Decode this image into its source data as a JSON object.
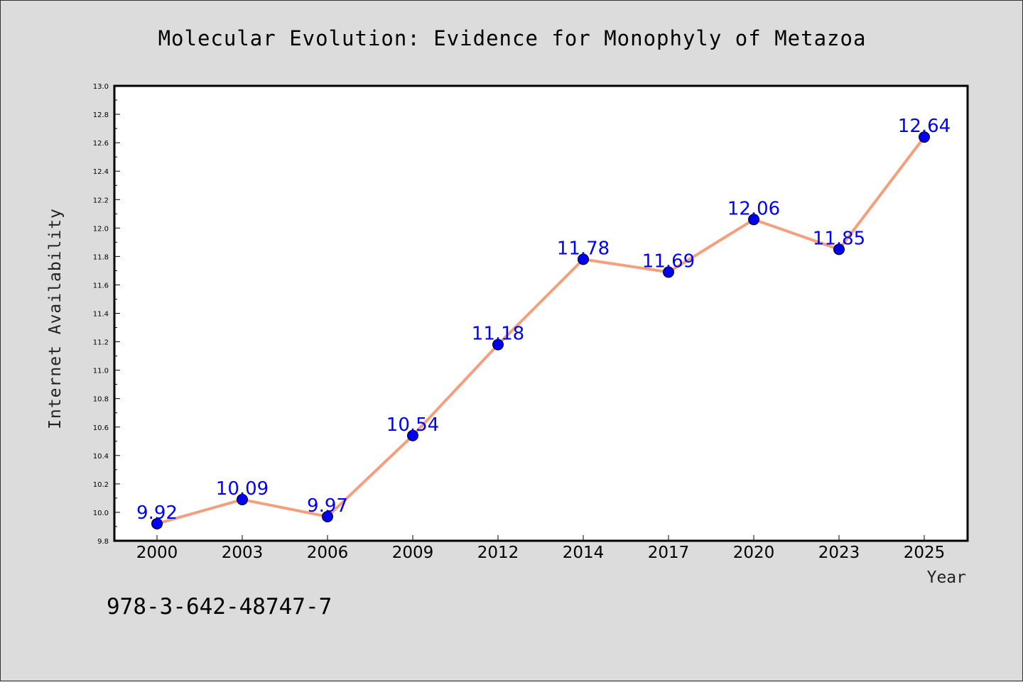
{
  "chart_data": {
    "type": "line",
    "title": "Molecular Evolution: Evidence for Monophyly of Metazoa",
    "xlabel": "Year",
    "ylabel": "Internet Availability",
    "categories": [
      "2000",
      "2003",
      "2006",
      "2009",
      "2012",
      "2014",
      "2017",
      "2020",
      "2023",
      "2025"
    ],
    "series": [
      {
        "values": [
          9.92,
          10.09,
          9.97,
          10.54,
          11.18,
          11.78,
          11.69,
          12.06,
          11.85,
          12.64
        ],
        "line_color": "#f4a07e",
        "marker_color": "#0000ee"
      }
    ],
    "data_labels": [
      "9.92",
      "10.09",
      "9.97",
      "10.54",
      "11.18",
      "11.78",
      "11.69",
      "12.06",
      "11.85",
      "12.64"
    ],
    "ylim": [
      9.8,
      13.0
    ],
    "yticks": [
      "9.8",
      "10.0",
      "10.2",
      "10.4",
      "10.6",
      "10.8",
      "11.0",
      "11.2",
      "11.4",
      "11.6",
      "11.8",
      "12.0",
      "12.2",
      "12.4",
      "12.6",
      "12.8",
      "13.0"
    ],
    "grid": false,
    "legend": "none"
  },
  "footer_text": "978-3-642-48747-7",
  "colors": {
    "background": "#dcdcdc",
    "plot_background": "#ffffff",
    "data_label": "#0000ff"
  }
}
